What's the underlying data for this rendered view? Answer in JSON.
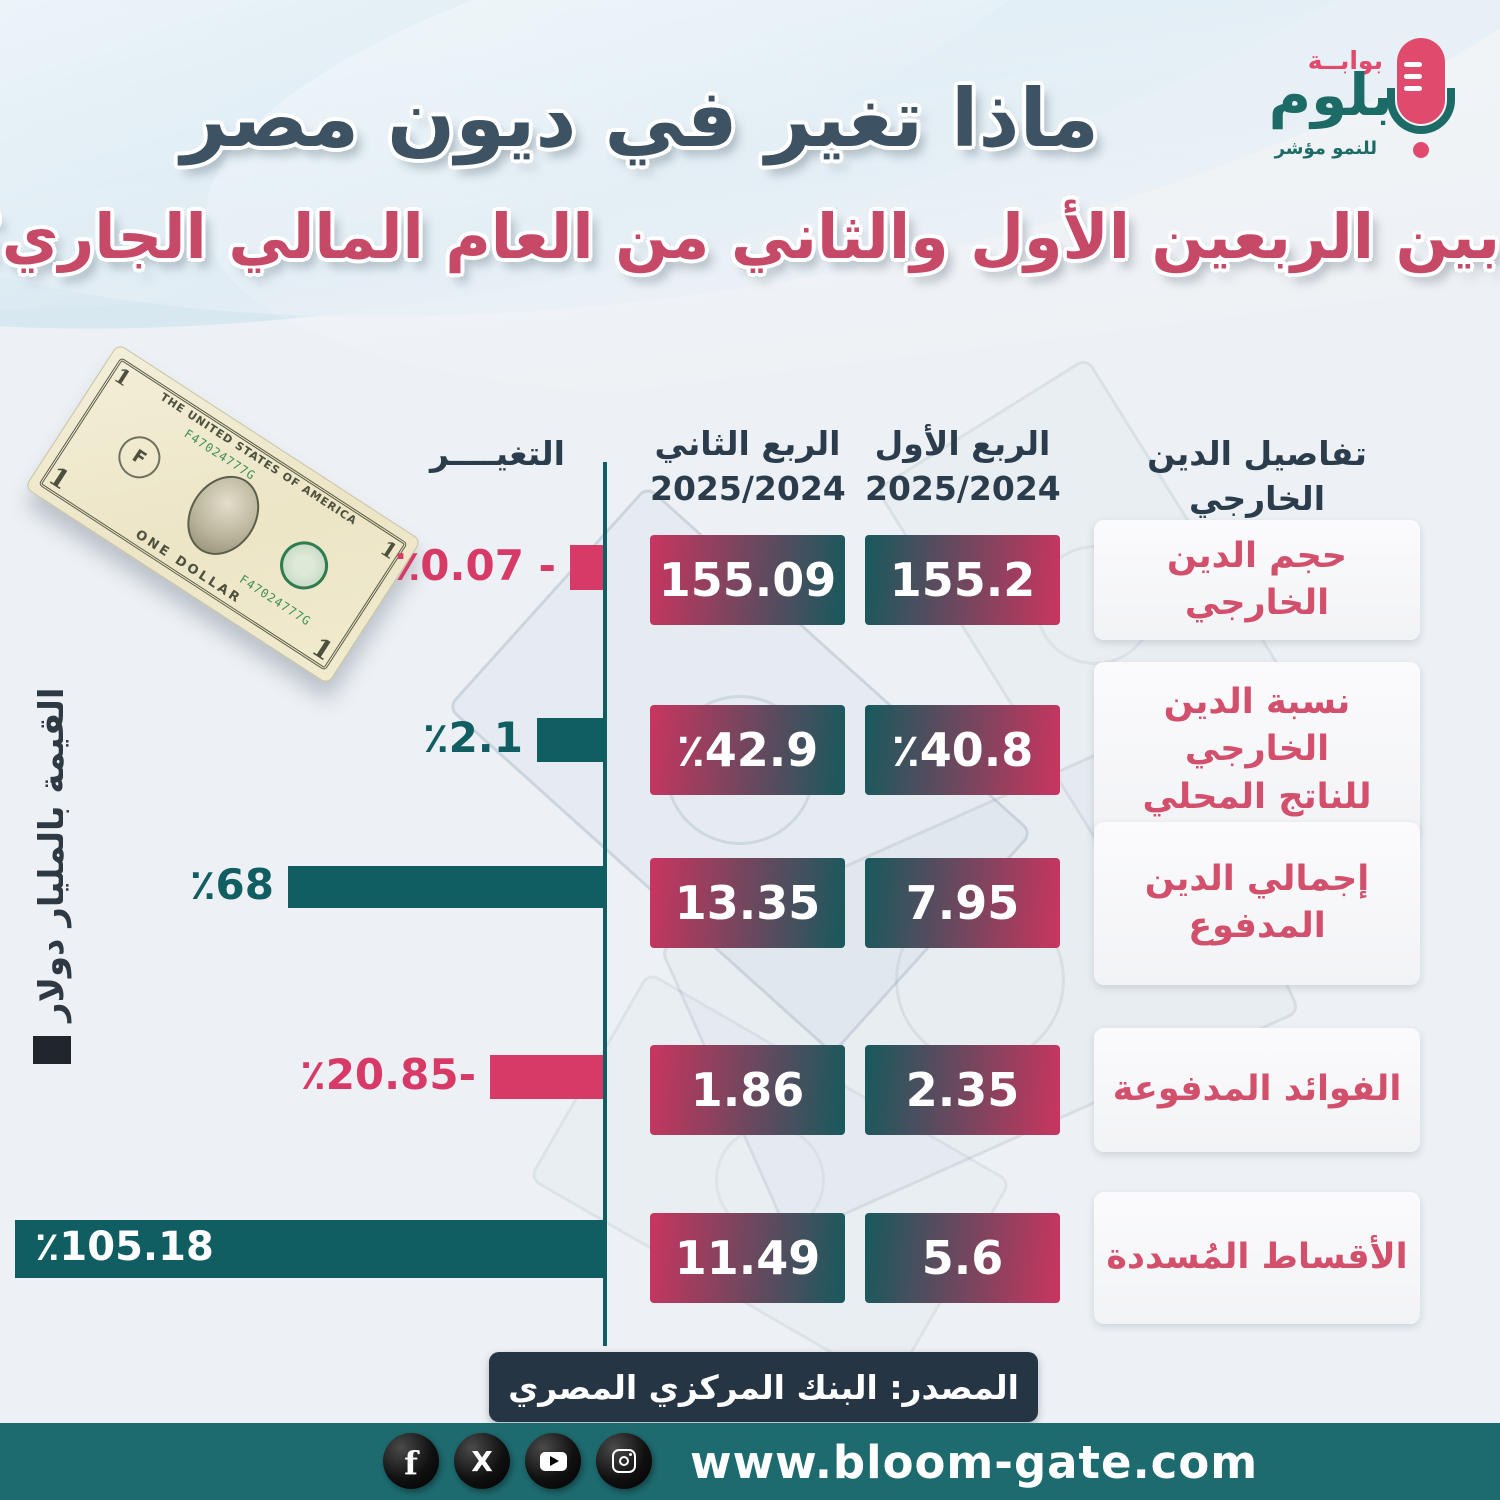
{
  "logo": {
    "gate_word": "بوابــة",
    "brand_word": "بلوم",
    "tagline": "للنمو مؤشر"
  },
  "title": {
    "line1": "ماذا تغير في ديون مصر",
    "line2": "بين الربعين الأول والثاني من العام المالي الجاري؟"
  },
  "unit_note": "القيمة بالمليار دولار",
  "table": {
    "headers": {
      "details": "تفاصيل الدين الخارجي",
      "q1_name": "الربع الأول",
      "q1_period": "2025/2024",
      "q2_name": "الربع الثاني",
      "q2_period": "2025/2024",
      "change": "التغيــــر"
    },
    "rows": [
      {
        "label": "حجم الدين الخارجي",
        "q1": "155.2",
        "q2": "155.09",
        "change": "٪0.07 -",
        "sign": "neg"
      },
      {
        "label": "نسبة الدين الخارجي\nللناتج المحلي",
        "q1": "٪40.8",
        "q2": "٪42.9",
        "change": "٪2.1",
        "sign": "pos"
      },
      {
        "label": "إجمالي الدين\nالمدفوع",
        "q1": "7.95",
        "q2": "13.35",
        "change": "٪68",
        "sign": "pos"
      },
      {
        "label": "الفوائد المدفوعة",
        "q1": "2.35",
        "q2": "1.86",
        "change": "٪20.85-",
        "sign": "neg"
      },
      {
        "label": "الأقساط المُسددة",
        "q1": "5.6",
        "q2": "11.49",
        "change": "٪105.18",
        "sign": "pos"
      }
    ]
  },
  "bill": {
    "country_title": "THE UNITED STATES OF AMERICA",
    "denomination_text": "ONE DOLLAR",
    "denomination_digit": "1",
    "seal_letter": "F",
    "serial": "F47024777G"
  },
  "source": "المصدر: البنك المركزي المصري",
  "footer": {
    "website": "www.bloom-gate.com"
  },
  "colors": {
    "teal": "#115e62",
    "pink": "#d83a68",
    "box_teal": "#17595d",
    "box_pink": "#c9355f",
    "navy": "#2b3d4c",
    "footer_teal": "#1d6a6f",
    "source_navy": "#263543",
    "label_pink": "#d2506b",
    "title_dark": "#3d5263",
    "title_pink": "#c64a67"
  },
  "chart_data": {
    "type": "table",
    "title": "ماذا تغير في ديون مصر بين الربعين الأول والثاني من العام المالي الجاري؟",
    "unit": "القيمة بالمليار دولار",
    "categories": [
      "حجم الدين الخارجي",
      "نسبة الدين الخارجي للناتج المحلي",
      "إجمالي الدين المدفوع",
      "الفوائد المدفوعة",
      "الأقساط المُسددة"
    ],
    "series": [
      {
        "name": "الربع الأول 2024/2025",
        "values": [
          155.2,
          "40.8%",
          7.95,
          2.35,
          5.6
        ]
      },
      {
        "name": "الربع الثاني 2024/2025",
        "values": [
          155.09,
          "42.9%",
          13.35,
          1.86,
          11.49
        ]
      },
      {
        "name": "التغير %",
        "values": [
          -0.07,
          2.1,
          68,
          -20.85,
          105.18
        ]
      }
    ],
    "legend_position": "top",
    "grid": false,
    "source": "البنك المركزي المصري"
  }
}
